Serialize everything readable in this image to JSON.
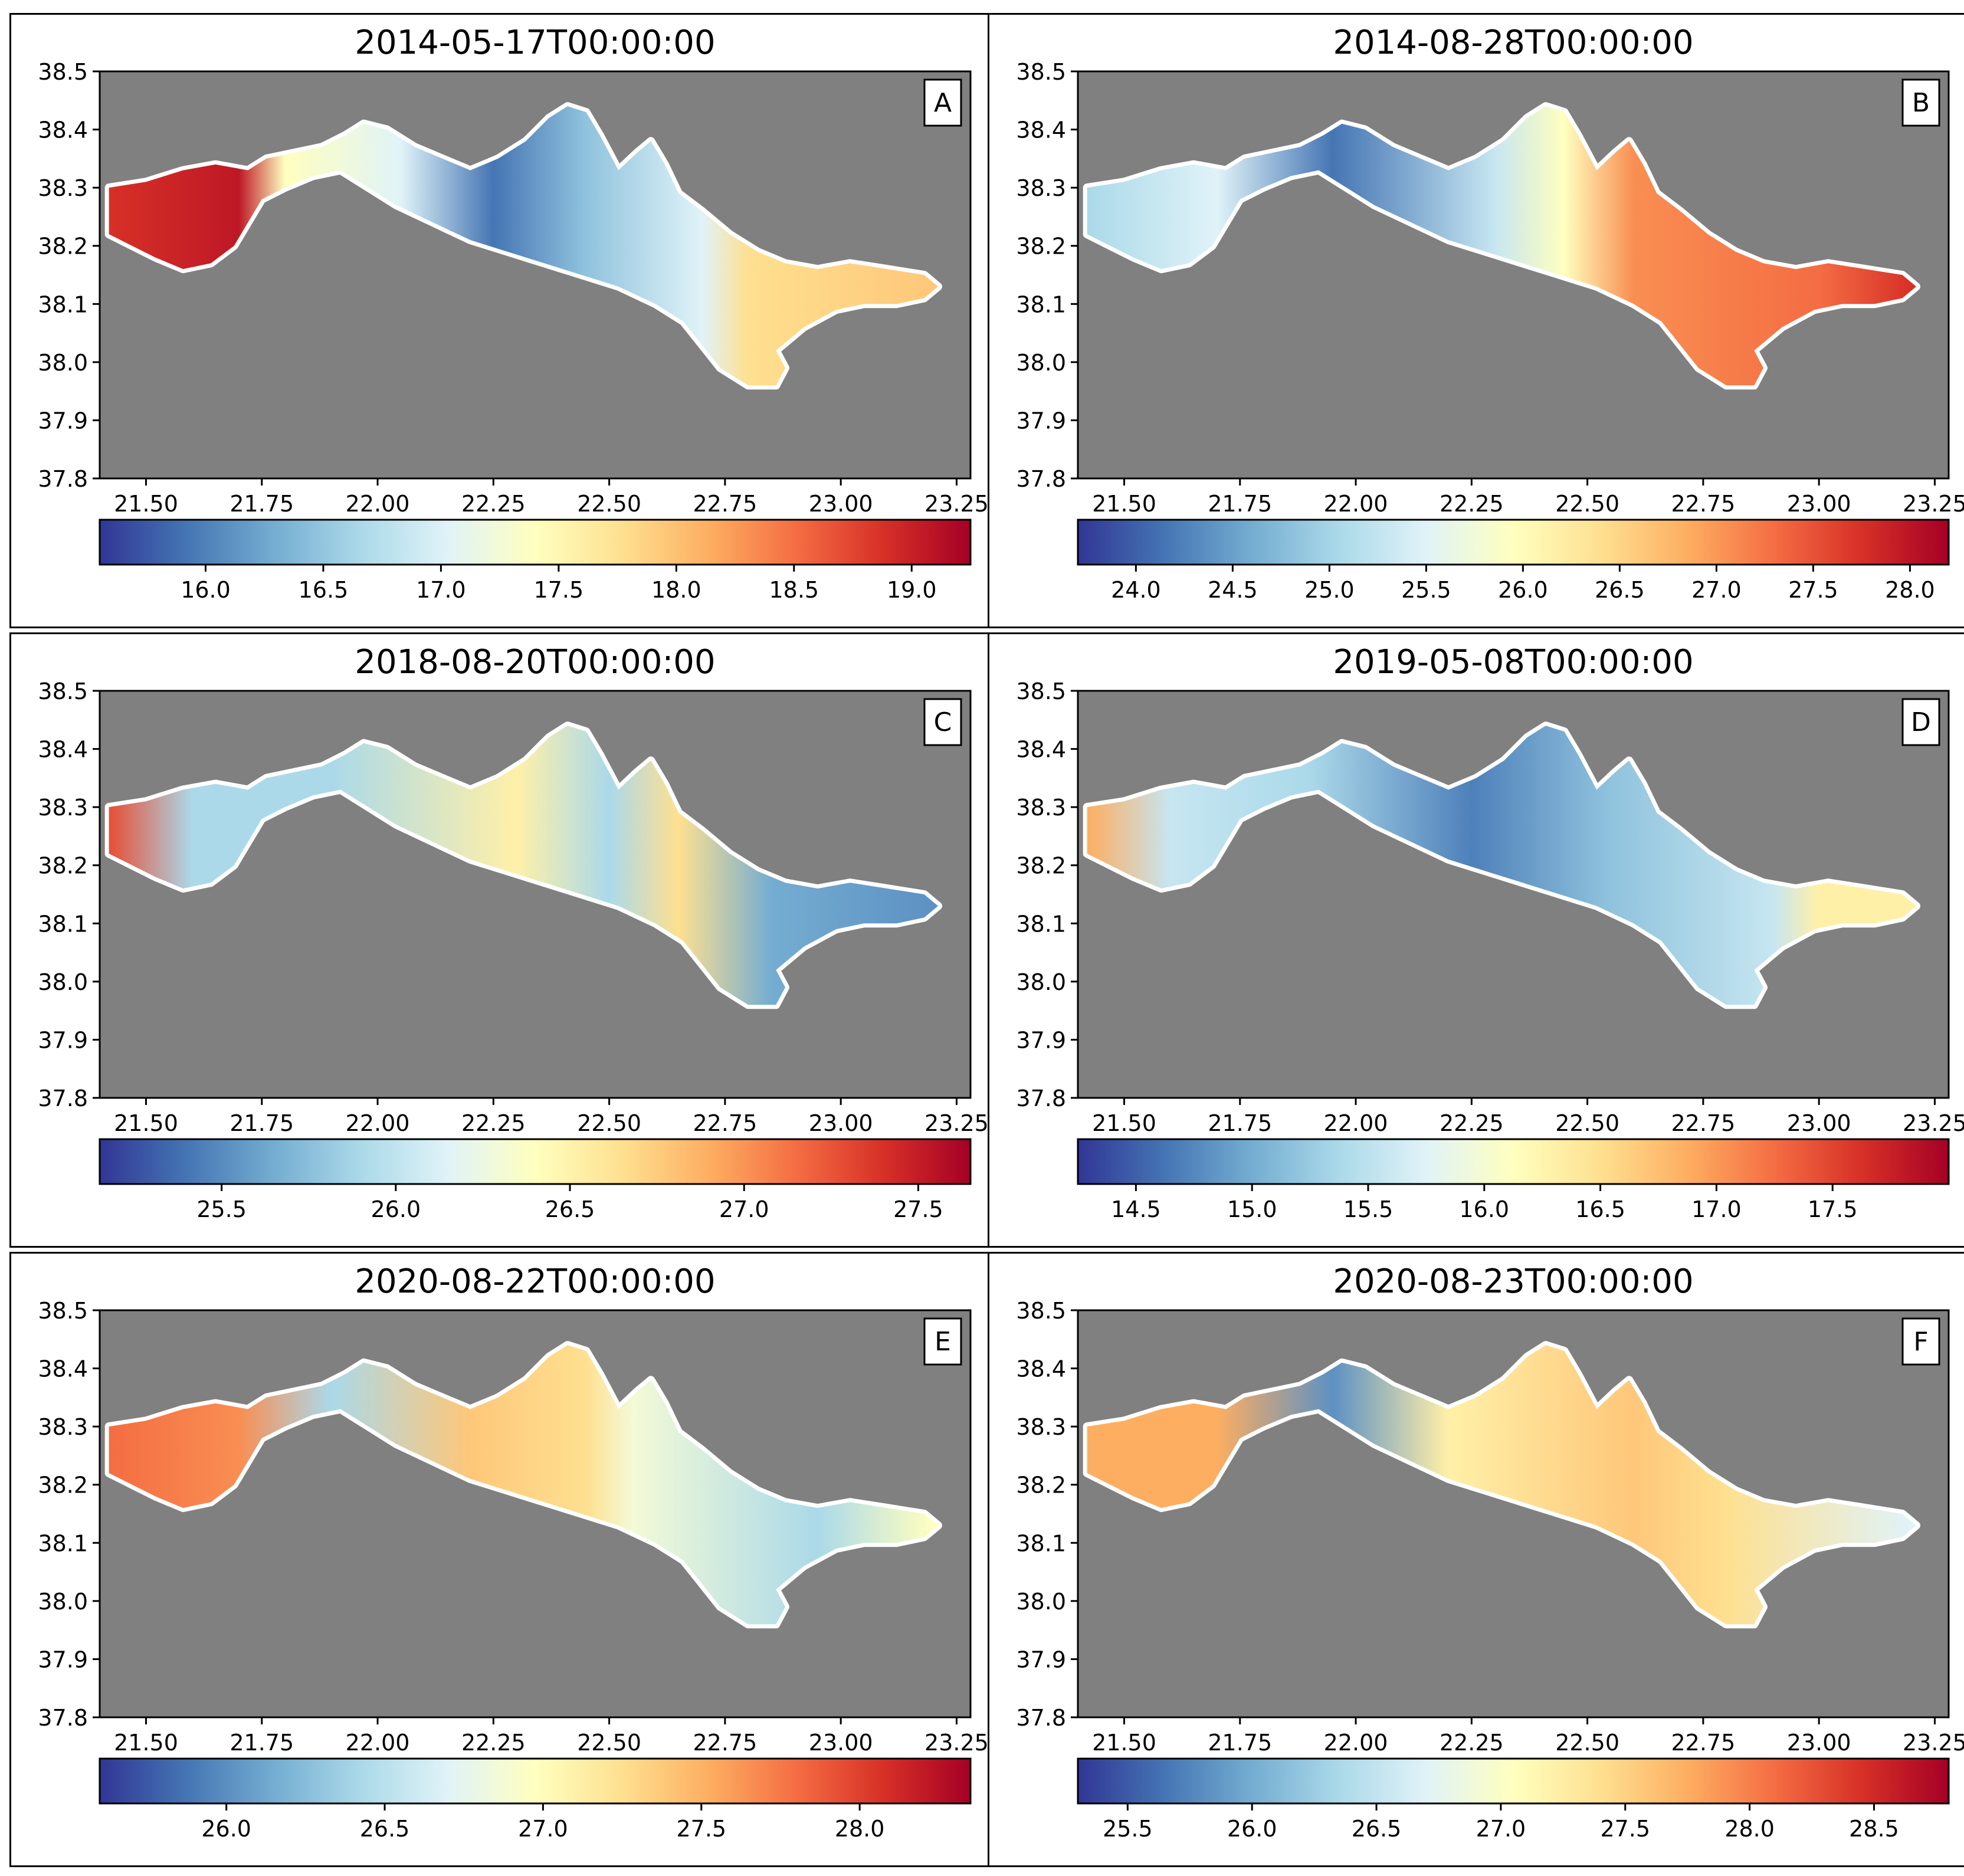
{
  "figure": {
    "panels": [
      {
        "letter": "A",
        "title": "2014-05-17T00:00:00",
        "y_ticks": [
          "38.5",
          "38.4",
          "38.3",
          "38.2",
          "38.1",
          "38.0",
          "37.9",
          "37.8"
        ],
        "x_ticks": [
          "21.50",
          "21.75",
          "22.00",
          "22.25",
          "22.50",
          "22.75",
          "23.00",
          "23.25"
        ],
        "colorbar_ticks": [
          "16.0",
          "16.5",
          "17.0",
          "17.5",
          "18.0",
          "18.5",
          "19.0"
        ],
        "colorbar_range": [
          15.55,
          19.25
        ]
      },
      {
        "letter": "B",
        "title": "2014-08-28T00:00:00",
        "y_ticks": [
          "38.5",
          "38.4",
          "38.3",
          "38.2",
          "38.1",
          "38.0",
          "37.9",
          "37.8"
        ],
        "x_ticks": [
          "21.50",
          "21.75",
          "22.00",
          "22.25",
          "22.50",
          "22.75",
          "23.00",
          "23.25"
        ],
        "colorbar_ticks": [
          "24.0",
          "24.5",
          "25.0",
          "25.5",
          "26.0",
          "26.5",
          "27.0",
          "27.5",
          "28.0"
        ],
        "colorbar_range": [
          23.7,
          28.2
        ]
      },
      {
        "letter": "C",
        "title": "2018-08-20T00:00:00",
        "y_ticks": [
          "38.5",
          "38.4",
          "38.3",
          "38.2",
          "38.1",
          "38.0",
          "37.9",
          "37.8"
        ],
        "x_ticks": [
          "21.50",
          "21.75",
          "22.00",
          "22.25",
          "22.50",
          "22.75",
          "23.00",
          "23.25"
        ],
        "colorbar_ticks": [
          "25.5",
          "26.0",
          "26.5",
          "27.0",
          "27.5"
        ],
        "colorbar_range": [
          25.15,
          27.65
        ]
      },
      {
        "letter": "D",
        "title": "2019-05-08T00:00:00",
        "y_ticks": [
          "38.5",
          "38.4",
          "38.3",
          "38.2",
          "38.1",
          "38.0",
          "37.9",
          "37.8"
        ],
        "x_ticks": [
          "21.50",
          "21.75",
          "22.00",
          "22.25",
          "22.50",
          "22.75",
          "23.00",
          "23.25"
        ],
        "colorbar_ticks": [
          "14.5",
          "15.0",
          "15.5",
          "16.0",
          "16.5",
          "17.0",
          "17.5"
        ],
        "colorbar_range": [
          14.25,
          18.0
        ]
      },
      {
        "letter": "E",
        "title": "2020-08-22T00:00:00",
        "y_ticks": [
          "38.5",
          "38.4",
          "38.3",
          "38.2",
          "38.1",
          "38.0",
          "37.9",
          "37.8"
        ],
        "x_ticks": [
          "21.50",
          "21.75",
          "22.00",
          "22.25",
          "22.50",
          "22.75",
          "23.00",
          "23.25"
        ],
        "colorbar_ticks": [
          "26.0",
          "26.5",
          "27.0",
          "27.5",
          "28.0"
        ],
        "colorbar_range": [
          25.6,
          28.35
        ]
      },
      {
        "letter": "F",
        "title": "2020-08-23T00:00:00",
        "y_ticks": [
          "38.5",
          "38.4",
          "38.3",
          "38.2",
          "38.1",
          "38.0",
          "37.9",
          "37.8"
        ],
        "x_ticks": [
          "21.50",
          "21.75",
          "22.00",
          "22.25",
          "22.50",
          "22.75",
          "23.00",
          "23.25"
        ],
        "colorbar_ticks": [
          "25.5",
          "26.0",
          "26.5",
          "27.0",
          "27.5",
          "28.0",
          "28.5"
        ],
        "colorbar_range": [
          25.3,
          28.8
        ]
      }
    ],
    "colors": {
      "land": "#808080",
      "colormap": [
        "#313695",
        "#4575b4",
        "#74add1",
        "#abd9e9",
        "#e0f3f8",
        "#ffffbf",
        "#fee090",
        "#fdae61",
        "#f46d43",
        "#d73027",
        "#a50026"
      ]
    }
  }
}
